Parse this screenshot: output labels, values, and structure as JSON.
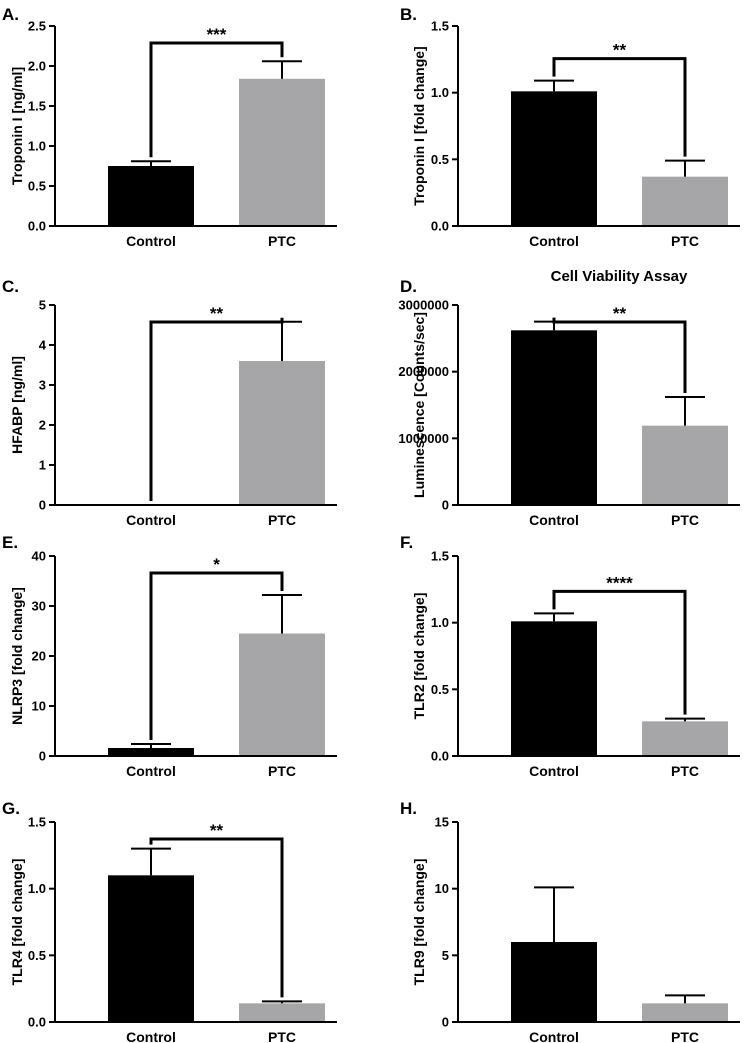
{
  "chart_data": [
    {
      "type": "bar",
      "panel": "A.",
      "title": "",
      "categories": [
        "Control",
        "PTC"
      ],
      "values": [
        0.75,
        1.84
      ],
      "errors": [
        0.06,
        0.22
      ],
      "ylabel": "Troponin I [ng/ml]",
      "ylim": [
        0,
        2.5
      ],
      "yticks": [
        "0.0",
        "0.5",
        "1.0",
        "1.5",
        "2.0",
        "2.5"
      ],
      "significance": "***",
      "colors": [
        "#000000",
        "#a6a6a8"
      ]
    },
    {
      "type": "bar",
      "panel": "B.",
      "title": "",
      "categories": [
        "Control",
        "PTC"
      ],
      "values": [
        1.01,
        0.37
      ],
      "errors": [
        0.08,
        0.12
      ],
      "ylabel": "Troponin I [fold change]",
      "ylim": [
        0,
        1.5
      ],
      "yticks": [
        "0.0",
        "0.5",
        "1.0",
        "1.5"
      ],
      "significance": "**",
      "colors": [
        "#000000",
        "#a6a6a8"
      ]
    },
    {
      "type": "bar",
      "panel": "C.",
      "title": "",
      "categories": [
        "Control",
        "PTC"
      ],
      "values": [
        0,
        3.6
      ],
      "errors": [
        0,
        0.98
      ],
      "ylabel": "HFABP [ng/ml]",
      "ylim": [
        0,
        5
      ],
      "yticks": [
        "0",
        "1",
        "2",
        "3",
        "4",
        "5"
      ],
      "significance": "**",
      "colors": [
        "#000000",
        "#a6a6a8"
      ]
    },
    {
      "type": "bar",
      "panel": "D.",
      "title": "Cell Viability Assay",
      "categories": [
        "Control",
        "PTC"
      ],
      "values": [
        2620000,
        1190000
      ],
      "errors": [
        130000,
        430000
      ],
      "ylabel": "Luminescence [Counts/sec]",
      "ylim": [
        0,
        3000000
      ],
      "yticks": [
        "0",
        "1000000",
        "2000000",
        "3000000"
      ],
      "significance": "**",
      "colors": [
        "#000000",
        "#a6a6a8"
      ]
    },
    {
      "type": "bar",
      "panel": "E.",
      "title": "",
      "categories": [
        "Control",
        "PTC"
      ],
      "values": [
        1.6,
        24.5
      ],
      "errors": [
        0.8,
        7.7
      ],
      "ylabel": "NLRP3 [fold change]",
      "ylim": [
        0,
        40
      ],
      "yticks": [
        "0",
        "10",
        "20",
        "30",
        "40"
      ],
      "significance": "*",
      "colors": [
        "#000000",
        "#a6a6a8"
      ]
    },
    {
      "type": "bar",
      "panel": "F.",
      "title": "",
      "categories": [
        "Control",
        "PTC"
      ],
      "values": [
        1.01,
        0.26
      ],
      "errors": [
        0.06,
        0.02
      ],
      "ylabel": "TLR2 [fold change]",
      "ylim": [
        0,
        1.5
      ],
      "yticks": [
        "0.0",
        "0.5",
        "1.0",
        "1.5"
      ],
      "significance": "****",
      "colors": [
        "#000000",
        "#a6a6a8"
      ]
    },
    {
      "type": "bar",
      "panel": "G.",
      "title": "",
      "categories": [
        "Control",
        "PTC"
      ],
      "values": [
        1.1,
        0.14
      ],
      "errors": [
        0.2,
        0.015
      ],
      "ylabel": "TLR4 [fold change]",
      "ylim": [
        0,
        1.5
      ],
      "yticks": [
        "0.0",
        "0.5",
        "1.0",
        "1.5"
      ],
      "significance": "**",
      "colors": [
        "#000000",
        "#a6a6a8"
      ]
    },
    {
      "type": "bar",
      "panel": "H.",
      "title": "",
      "categories": [
        "Control",
        "PTC"
      ],
      "values": [
        6.0,
        1.4
      ],
      "errors": [
        4.1,
        0.6
      ],
      "ylabel": "TLR9 [fold change]",
      "ylim": [
        0,
        15
      ],
      "yticks": [
        "0",
        "5",
        "10",
        "15"
      ],
      "significance": "",
      "colors": [
        "#000000",
        "#a6a6a8"
      ]
    }
  ]
}
